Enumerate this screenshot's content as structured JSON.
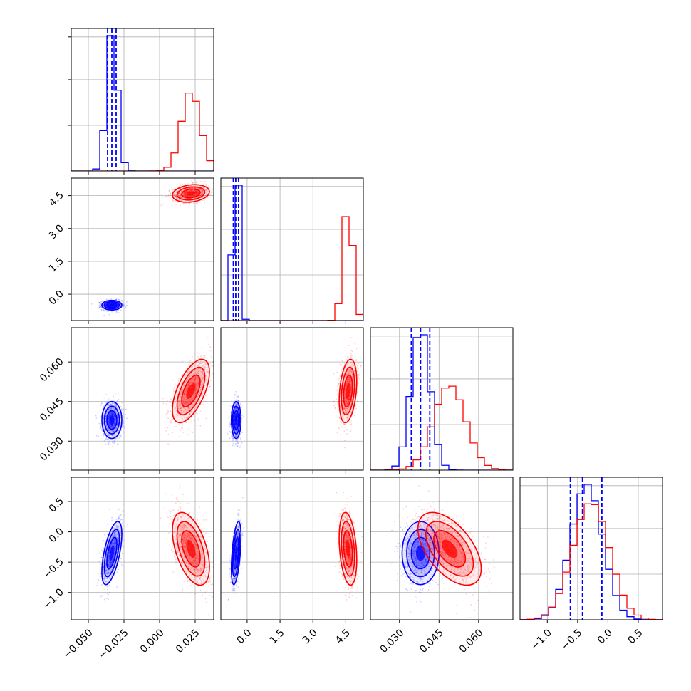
{
  "chart_data": {
    "type": "corner",
    "grid": true,
    "colors": {
      "blue": "#0000ff",
      "red": "#ff0000"
    },
    "variables": [
      {
        "id": "v1",
        "xlim": [
          -0.062,
          0.038
        ],
        "ticks": [
          -0.05,
          -0.025,
          0.0,
          0.025
        ],
        "tick_labels": [
          "−0.050",
          "−0.025",
          "0.000",
          "0.025"
        ]
      },
      {
        "id": "v2",
        "xlim": [
          -1.2,
          5.3
        ],
        "ticks": [
          0.0,
          1.5,
          3.0,
          4.5
        ],
        "tick_labels": [
          "0.0",
          "1.5",
          "3.0",
          "4.5"
        ]
      },
      {
        "id": "v3",
        "xlim": [
          0.019,
          0.073
        ],
        "ticks": [
          0.03,
          0.045,
          0.06
        ],
        "tick_labels": [
          "0.030",
          "0.045",
          "0.060"
        ]
      },
      {
        "id": "v4",
        "xlim": [
          -1.45,
          0.9
        ],
        "ticks": [
          -1.0,
          -0.5,
          0.0,
          0.5
        ],
        "tick_labels": [
          "−1.0",
          "−0.5",
          "0.0",
          "0.5"
        ]
      }
    ],
    "series": [
      {
        "color": "blue",
        "mean": [
          -0.0335,
          -0.5,
          0.038,
          -0.35
        ],
        "sd": [
          0.0035,
          0.11,
          0.0035,
          0.26
        ],
        "correlations": {
          "0-1": 0.0,
          "0-2": 0.0,
          "0-3": 0.6,
          "1-2": 0.0,
          "1-3": 0.5,
          "2-3": 0.0
        },
        "quantile_lines": [
          [
            -0.0365,
            -0.0335,
            -0.0305
          ],
          [
            -0.63,
            -0.52,
            -0.39
          ],
          [
            0.0345,
            0.038,
            0.0415
          ],
          [
            -0.62,
            -0.42,
            -0.1
          ]
        ]
      },
      {
        "color": "red",
        "mean": [
          0.022,
          4.6,
          0.049,
          -0.28
        ],
        "sd": [
          0.0065,
          0.2,
          0.006,
          0.3
        ],
        "correlations": {
          "0-1": 0.2,
          "0-2": 0.6,
          "0-3": -0.5,
          "1-2": 0.3,
          "1-3": -0.3,
          "2-3": -0.5
        }
      }
    ],
    "pair_correlations": {
      "2-3": -0.55
    }
  }
}
